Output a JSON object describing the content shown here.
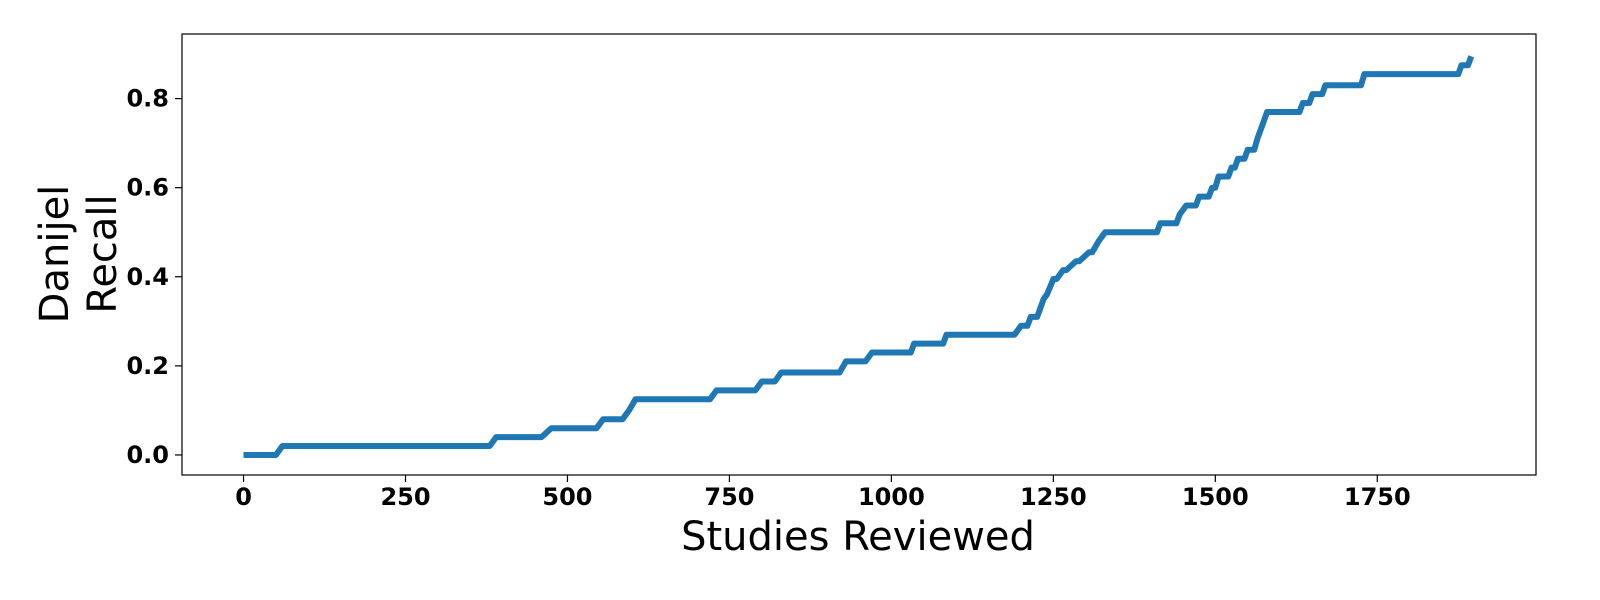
{
  "chart_data": {
    "type": "line",
    "xlabel": "Studies Reviewed",
    "ylabel_lines": [
      "Danijel",
      "Recall"
    ],
    "xlim": [
      -95,
      1995
    ],
    "ylim": [
      -0.045,
      0.945
    ],
    "x_ticks": [
      0,
      250,
      500,
      750,
      1000,
      1250,
      1500,
      1750
    ],
    "y_ticks": [
      0.0,
      0.2,
      0.4,
      0.6,
      0.8
    ],
    "x_tick_labels": [
      "0",
      "250",
      "500",
      "750",
      "1000",
      "1250",
      "1500",
      "1750"
    ],
    "y_tick_labels": [
      "0.0",
      "0.2",
      "0.4",
      "0.6",
      "0.8"
    ],
    "grid": false,
    "series": [
      {
        "color": "#1f77b4",
        "x": [
          0,
          50,
          60,
          380,
          390,
          460,
          475,
          545,
          555,
          585,
          595,
          605,
          720,
          730,
          790,
          800,
          820,
          830,
          920,
          930,
          960,
          970,
          1030,
          1035,
          1080,
          1085,
          1190,
          1200,
          1210,
          1215,
          1225,
          1235,
          1240,
          1250,
          1255,
          1265,
          1270,
          1285,
          1290,
          1305,
          1310,
          1320,
          1330,
          1340,
          1345,
          1410,
          1415,
          1440,
          1445,
          1455,
          1470,
          1475,
          1490,
          1495,
          1500,
          1505,
          1520,
          1525,
          1530,
          1535,
          1545,
          1550,
          1560,
          1565,
          1575,
          1580,
          1590,
          1630,
          1635,
          1645,
          1650,
          1665,
          1670,
          1725,
          1730,
          1875,
          1880,
          1890,
          1895
        ],
        "y": [
          0.0,
          0.0,
          0.02,
          0.02,
          0.04,
          0.04,
          0.06,
          0.06,
          0.08,
          0.08,
          0.1,
          0.125,
          0.125,
          0.145,
          0.145,
          0.165,
          0.165,
          0.185,
          0.185,
          0.21,
          0.21,
          0.23,
          0.23,
          0.25,
          0.25,
          0.27,
          0.27,
          0.29,
          0.29,
          0.31,
          0.31,
          0.35,
          0.36,
          0.395,
          0.395,
          0.415,
          0.415,
          0.435,
          0.435,
          0.455,
          0.455,
          0.48,
          0.5,
          0.5,
          0.5,
          0.5,
          0.52,
          0.52,
          0.54,
          0.56,
          0.56,
          0.58,
          0.58,
          0.6,
          0.6,
          0.625,
          0.625,
          0.645,
          0.645,
          0.665,
          0.665,
          0.685,
          0.685,
          0.71,
          0.75,
          0.77,
          0.77,
          0.77,
          0.79,
          0.79,
          0.81,
          0.81,
          0.83,
          0.83,
          0.855,
          0.855,
          0.875,
          0.875,
          0.895
        ]
      }
    ]
  }
}
